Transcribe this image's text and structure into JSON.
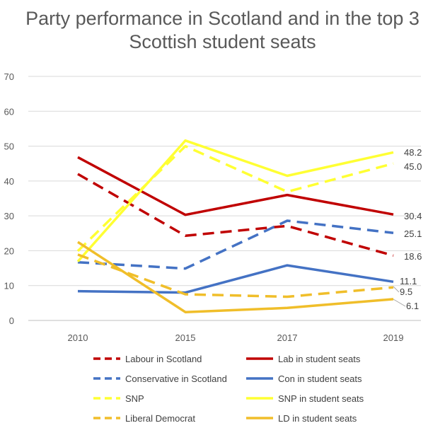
{
  "chart_data": {
    "type": "line",
    "title_lines": [
      "Party performance in Scotland and in the top 3",
      "Scottish student seats"
    ],
    "categories": [
      "2010",
      "2015",
      "2017",
      "2019"
    ],
    "ylim": [
      0,
      70
    ],
    "yticks": [
      0,
      10,
      20,
      30,
      40,
      50,
      60,
      70
    ],
    "grid": true,
    "legend_position": "bottom",
    "series": [
      {
        "name": "Labour in Scotland",
        "color": "#C00000",
        "dashed": true,
        "values": [
          42.0,
          24.3,
          27.1,
          18.6
        ]
      },
      {
        "name": "Lab in student seats",
        "color": "#C00000",
        "dashed": false,
        "values": [
          46.8,
          30.3,
          36.0,
          30.4
        ],
        "end_label": "30.4"
      },
      {
        "name": "Conservative in Scotland",
        "color": "#4472C4",
        "dashed": true,
        "values": [
          16.7,
          14.9,
          28.6,
          25.1
        ],
        "end_label": "25.1"
      },
      {
        "name": "Con in student seats",
        "color": "#4472C4",
        "dashed": false,
        "values": [
          8.4,
          8.0,
          15.8,
          11.1
        ],
        "end_label": "11.1"
      },
      {
        "name": "SNP",
        "color": "#FFFF33",
        "dashed": true,
        "values": [
          19.9,
          50.0,
          36.9,
          45.0
        ],
        "end_label": "45.0"
      },
      {
        "name": "SNP in student seats",
        "color": "#FFFF33",
        "dashed": false,
        "values": [
          16.9,
          51.6,
          41.5,
          48.2
        ],
        "end_label": "48.2"
      },
      {
        "name": "Liberal Democrat",
        "color": "#F0BE2A",
        "dashed": true,
        "values": [
          18.9,
          7.5,
          6.8,
          9.5
        ],
        "end_label": "9.5"
      },
      {
        "name": "LD in student seats",
        "color": "#F0BE2A",
        "dashed": false,
        "values": [
          22.5,
          2.4,
          3.6,
          6.1
        ],
        "end_label": "6.1"
      }
    ],
    "extra_labels": [
      {
        "text": "18.6",
        "value": 18.6
      }
    ]
  }
}
